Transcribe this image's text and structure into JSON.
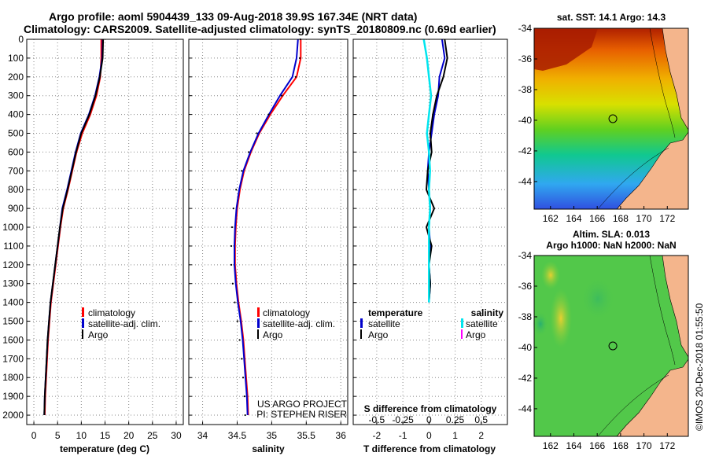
{
  "title_line1": "Argo profile: aoml 5904439_133 09-Aug-2018 39.9S 167.34E (NRT data)",
  "title_line2": "Climatology: CARS2009. Satellite-adjusted climatology: synTS_20180809.nc (0.69d earlier)",
  "credit": "©IMOS 20-Dec-2018 01:55:50",
  "colors": {
    "clim": "#ff0000",
    "sat": "#0000cc",
    "argo": "#000000",
    "sat_s": "#00e5ee",
    "argo_s": "#ff00ff"
  },
  "chart_data": [
    {
      "id": "temperature",
      "type": "line",
      "xlabel": "temperature (deg C)",
      "xlim": [
        -1.5,
        31.5
      ],
      "ylim": [
        0,
        2050
      ],
      "xticks": [
        "0",
        "5",
        "10",
        "15",
        "20",
        "25",
        "30"
      ],
      "xtick_values": [
        0,
        5,
        10,
        15,
        20,
        25,
        30
      ],
      "yticks": [
        "0",
        "100",
        "200",
        "300",
        "400",
        "500",
        "600",
        "700",
        "800",
        "900",
        "1000",
        "1100",
        "1200",
        "1300",
        "1400",
        "1500",
        "1600",
        "1700",
        "1800",
        "1900",
        "2000"
      ],
      "ytick_values": [
        0,
        100,
        200,
        300,
        400,
        500,
        600,
        700,
        800,
        900,
        1000,
        1100,
        1200,
        1300,
        1400,
        1500,
        1600,
        1700,
        1800,
        1900,
        2000
      ],
      "legend": [
        "climatology",
        "satellite-adj. clim.",
        "Argo"
      ],
      "series": [
        {
          "name": "climatology",
          "color": "clim",
          "x": [
            14.2,
            14.2,
            14.0,
            13.2,
            11.9,
            10.2,
            9.0,
            8.1,
            7.2,
            6.2,
            5.6,
            5.1,
            4.6,
            4.1,
            3.6,
            3.3,
            3.0,
            2.8,
            2.6,
            2.4,
            2.3
          ],
          "y": [
            0,
            100,
            200,
            300,
            400,
            500,
            600,
            700,
            800,
            900,
            1000,
            1100,
            1200,
            1300,
            1400,
            1500,
            1600,
            1700,
            1800,
            1900,
            2000
          ]
        },
        {
          "name": "satellite-adj. clim.",
          "color": "sat",
          "x": [
            14.5,
            14.4,
            13.8,
            12.9,
            11.6,
            9.9,
            8.8,
            7.9,
            7.0,
            6.0,
            5.5,
            5.0,
            4.5,
            4.0,
            3.5,
            3.2,
            2.9,
            2.7,
            2.5,
            2.3,
            2.2
          ],
          "y": [
            0,
            100,
            200,
            300,
            400,
            500,
            600,
            700,
            800,
            900,
            1000,
            1100,
            1200,
            1300,
            1400,
            1500,
            1600,
            1700,
            1800,
            1900,
            2000
          ]
        },
        {
          "name": "Argo",
          "color": "argo",
          "x": [
            14.6,
            14.5,
            13.9,
            13.0,
            11.7,
            10.0,
            8.9,
            8.0,
            7.1,
            6.1,
            5.5,
            5.0,
            4.5,
            4.0,
            3.5,
            3.2,
            2.9,
            2.7,
            2.5,
            2.3,
            2.2
          ],
          "y": [
            0,
            100,
            200,
            300,
            400,
            500,
            600,
            700,
            800,
            900,
            1000,
            1100,
            1200,
            1300,
            1400,
            1500,
            1600,
            1700,
            1800,
            1900,
            2000
          ]
        }
      ]
    },
    {
      "id": "salinity",
      "type": "line",
      "xlabel": "salinity",
      "xlim": [
        33.8,
        36.1
      ],
      "ylim": [
        0,
        2050
      ],
      "xticks": [
        "34",
        "34.5",
        "35",
        "35.5",
        "36"
      ],
      "xtick_values": [
        34,
        34.5,
        35,
        35.5,
        36
      ],
      "legend": [
        "climatology",
        "satellite-adj. clim.",
        "Argo"
      ],
      "annotation_lines": [
        "US ARGO PROJECT",
        "PI: STEPHEN RISER"
      ],
      "series": [
        {
          "name": "climatology",
          "color": "clim",
          "x": [
            35.42,
            35.42,
            35.36,
            35.16,
            34.98,
            34.82,
            34.7,
            34.6,
            34.54,
            34.5,
            34.48,
            34.47,
            34.47,
            34.49,
            34.52,
            34.56,
            34.59,
            34.61,
            34.63,
            34.65,
            34.66
          ],
          "y": [
            0,
            100,
            200,
            300,
            400,
            500,
            600,
            700,
            800,
            900,
            1000,
            1100,
            1200,
            1300,
            1400,
            1500,
            1600,
            1700,
            1800,
            1900,
            2000
          ]
        },
        {
          "name": "satellite-adj. clim.",
          "color": "sat",
          "x": [
            35.38,
            35.36,
            35.3,
            35.12,
            34.96,
            34.81,
            34.69,
            34.59,
            34.53,
            34.49,
            34.47,
            34.46,
            34.46,
            34.48,
            34.51,
            34.55,
            34.58,
            34.6,
            34.62,
            34.64,
            34.65
          ],
          "y": [
            0,
            100,
            200,
            300,
            400,
            500,
            600,
            700,
            800,
            900,
            1000,
            1100,
            1200,
            1300,
            1400,
            1500,
            1600,
            1700,
            1800,
            1900,
            2000
          ]
        },
        {
          "name": "Argo",
          "color": "argo",
          "style": "dots",
          "x": [
            35.45,
            35.44,
            35.38,
            35.18,
            34.99,
            34.82,
            34.7,
            34.6,
            34.52,
            34.48,
            34.46,
            34.45,
            34.45,
            34.47,
            34.5,
            34.54,
            34.57,
            34.6,
            34.62,
            34.64,
            34.65
          ],
          "y": [
            0,
            100,
            200,
            300,
            400,
            500,
            600,
            700,
            800,
            900,
            1000,
            1100,
            1200,
            1300,
            1400,
            1500,
            1600,
            1700,
            1800,
            1900,
            2000
          ]
        }
      ]
    },
    {
      "id": "difference",
      "type": "line",
      "xlabel": "T difference from climatology",
      "xlabel_top": "S difference from climatology",
      "xlim": [
        -2.9,
        3.0
      ],
      "ylim": [
        0,
        2050
      ],
      "xticks": [
        "-2",
        "-1",
        "0",
        "1",
        "2"
      ],
      "xtick_values": [
        -2,
        -1,
        0,
        1,
        2
      ],
      "sticks": [
        "-0.5",
        "-0.25",
        "0",
        "0.25",
        "0.5"
      ],
      "stick_values": [
        -0.5,
        -0.25,
        0,
        0.25,
        0.5
      ],
      "s_scale": 4,
      "legend_left_title": "temperature",
      "legend_right_title": "salinity",
      "legend_left": [
        "satellite",
        "Argo"
      ],
      "legend_right": [
        "satellite",
        "Argo"
      ],
      "series": [
        {
          "name": "T satellite",
          "color": "sat",
          "x": [
            0.5,
            0.6,
            0.4,
            0.35,
            0.2,
            0.1,
            0.0,
            -0.05,
            0.0,
            0.05,
            0.0,
            0.05,
            0.0,
            0.05,
            0.0
          ],
          "y": [
            0,
            100,
            200,
            300,
            400,
            500,
            600,
            700,
            800,
            900,
            1000,
            1100,
            1200,
            1300,
            1400
          ]
        },
        {
          "name": "T Argo",
          "color": "argo",
          "x": [
            0.6,
            0.7,
            0.55,
            0.3,
            0.15,
            0.05,
            0.1,
            -0.05,
            -0.1,
            0.2,
            -0.1,
            0.1,
            0.0,
            0.05,
            0.0
          ],
          "y": [
            0,
            100,
            200,
            300,
            400,
            500,
            600,
            700,
            800,
            900,
            1000,
            1100,
            1200,
            1300,
            1400
          ]
        },
        {
          "name": "S satellite",
          "color": "sat_s",
          "x": [
            -0.05,
            -0.02,
            0.0,
            0.02,
            0.0,
            -0.02,
            0.0,
            0.01,
            0.0,
            0.01,
            0.0,
            0.0,
            0.0,
            0.0,
            0.0
          ],
          "y": [
            0,
            100,
            200,
            300,
            400,
            500,
            600,
            700,
            800,
            900,
            1000,
            1100,
            1200,
            1300,
            1400
          ]
        }
      ]
    }
  ],
  "maps": [
    {
      "id": "sst-map",
      "title": "sat. SST: 14.1 Argo: 14.3",
      "lon_ticks": [
        "162",
        "164",
        "166",
        "168",
        "170",
        "172"
      ],
      "lon_values": [
        162,
        164,
        166,
        168,
        170,
        172
      ],
      "lat_ticks": [
        "-34",
        "-36",
        "-38",
        "-40",
        "-42",
        "-44"
      ],
      "lat_values": [
        -34,
        -36,
        -38,
        -40,
        -42,
        -44
      ],
      "lon_range": [
        160.6,
        173.8
      ],
      "lat_range": [
        -34,
        -45.8
      ],
      "marker": {
        "lon": 167.34,
        "lat": -39.9
      }
    },
    {
      "id": "sla-map",
      "title": "Altim. SLA: 0.013",
      "subtitle": "Argo h1000: NaN h2000: NaN",
      "lon_ticks": [
        "162",
        "164",
        "166",
        "168",
        "170",
        "172"
      ],
      "lon_values": [
        162,
        164,
        166,
        168,
        170,
        172
      ],
      "lat_ticks": [
        "-34",
        "-36",
        "-38",
        "-40",
        "-42",
        "-44"
      ],
      "lat_values": [
        -34,
        -36,
        -38,
        -40,
        -42,
        -44
      ],
      "lon_range": [
        160.6,
        173.8
      ],
      "lat_range": [
        -34,
        -45.8
      ],
      "marker": {
        "lon": 167.34,
        "lat": -39.9
      }
    }
  ]
}
